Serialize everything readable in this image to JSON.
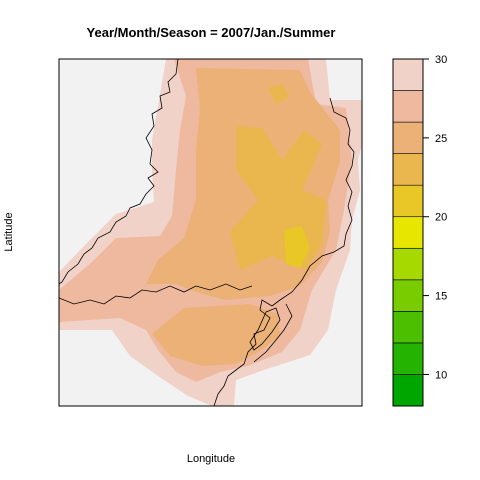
{
  "chart_data": {
    "type": "heatmap",
    "title": "Year/Month/Season = 2007/Jan./Summer",
    "xlabel": "Longitude",
    "ylabel": "Latitude",
    "colorbar": {
      "ticks": [
        10,
        15,
        20,
        25,
        30
      ],
      "tick_labels": [
        "10",
        "15",
        "20",
        "25",
        "30"
      ],
      "range": [
        8,
        30
      ],
      "levels": [
        8,
        10,
        12,
        14,
        16,
        18,
        20,
        22,
        24,
        26,
        28,
        30
      ],
      "colors": [
        "#00A600",
        "#24B300",
        "#4BBF00",
        "#78CC00",
        "#A6D900",
        "#E6E600",
        "#E8C727",
        "#EAB64E",
        "#ECB176",
        "#EEB99F",
        "#F0D2C8",
        "#F2F2F2"
      ]
    },
    "colors": {
      "background": "#F2F2F2",
      "outline": "#000000"
    }
  }
}
